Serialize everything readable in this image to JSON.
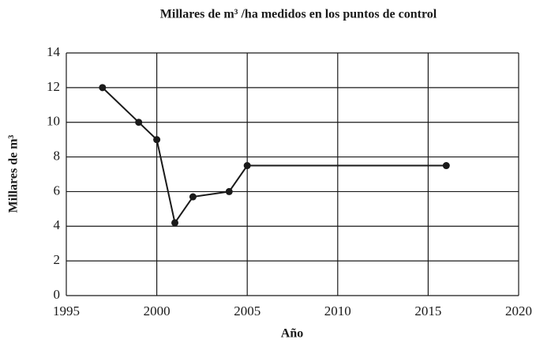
{
  "chart_data": {
    "type": "line",
    "title": "Millares de m³ /ha medidos en los puntos de control",
    "x_label": "Año",
    "y_label": "Millares de m³",
    "x": [
      1997,
      1999,
      2000,
      2001,
      2002,
      2004,
      2005,
      2016
    ],
    "series": [
      {
        "name": "Millares de m³",
        "color": "#1a1a1a",
        "values": [
          12,
          10,
          9,
          4.2,
          5.7,
          6,
          7.5,
          7.5
        ]
      }
    ],
    "xlim": [
      1995,
      2020
    ],
    "xticks": [
      1995,
      2000,
      2005,
      2010,
      2015,
      2020
    ],
    "ylim": [
      0,
      14
    ],
    "yticks": [
      0,
      2,
      4,
      6,
      8,
      10,
      12,
      14
    ],
    "grid": true
  }
}
